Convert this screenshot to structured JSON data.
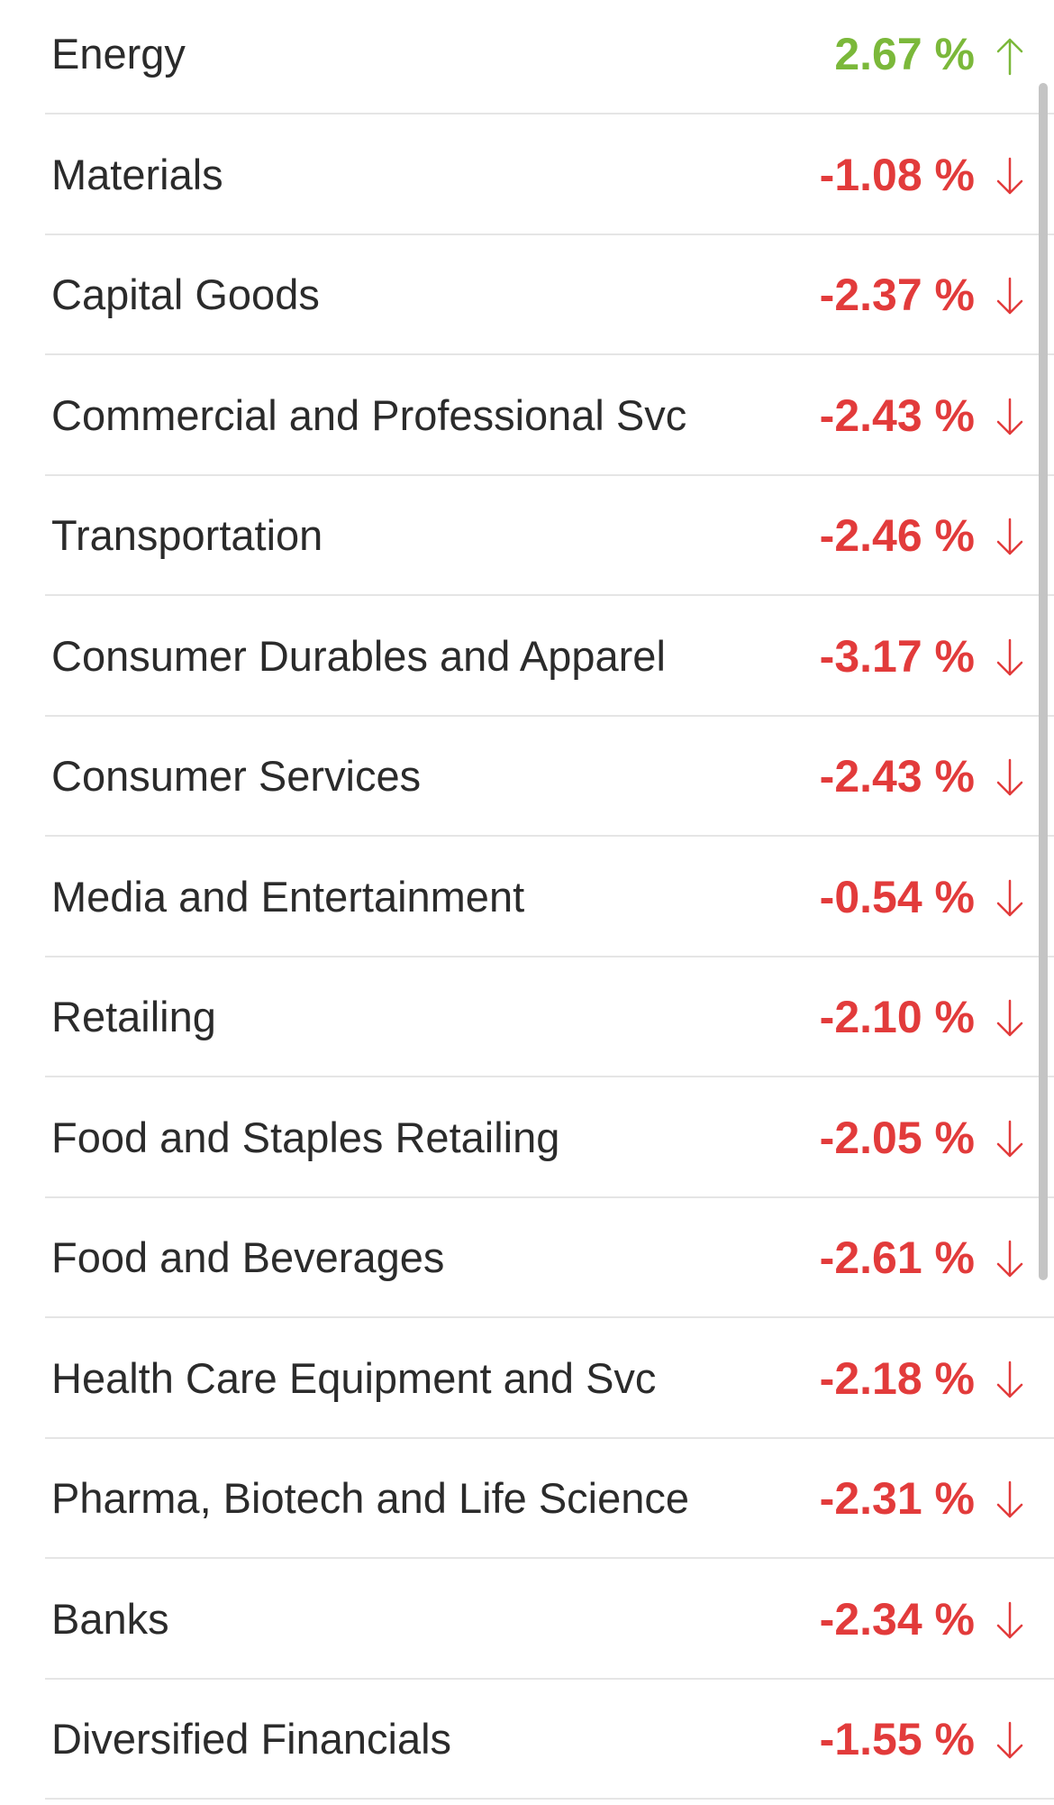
{
  "colors": {
    "up": "#7bb83a",
    "down": "#e23b3b"
  },
  "sectors": [
    {
      "name": "Energy",
      "change": "2.67 %",
      "direction": "up",
      "icon": "arrow-up-icon"
    },
    {
      "name": "Materials",
      "change": "-1.08 %",
      "direction": "down",
      "icon": "arrow-down-icon"
    },
    {
      "name": "Capital Goods",
      "change": "-2.37 %",
      "direction": "down",
      "icon": "arrow-down-icon"
    },
    {
      "name": "Commercial and Professional Svc",
      "change": "-2.43 %",
      "direction": "down",
      "icon": "arrow-down-icon"
    },
    {
      "name": "Transportation",
      "change": "-2.46 %",
      "direction": "down",
      "icon": "arrow-down-icon"
    },
    {
      "name": "Consumer Durables and Apparel",
      "change": "-3.17 %",
      "direction": "down",
      "icon": "arrow-down-icon"
    },
    {
      "name": "Consumer Services",
      "change": "-2.43 %",
      "direction": "down",
      "icon": "arrow-down-icon"
    },
    {
      "name": "Media and Entertainment",
      "change": "-0.54 %",
      "direction": "down",
      "icon": "arrow-down-icon"
    },
    {
      "name": "Retailing",
      "change": "-2.10 %",
      "direction": "down",
      "icon": "arrow-down-icon"
    },
    {
      "name": "Food and Staples Retailing",
      "change": "-2.05 %",
      "direction": "down",
      "icon": "arrow-down-icon"
    },
    {
      "name": "Food and Beverages",
      "change": "-2.61 %",
      "direction": "down",
      "icon": "arrow-down-icon"
    },
    {
      "name": "Health Care Equipment and Svc",
      "change": "-2.18 %",
      "direction": "down",
      "icon": "arrow-down-icon"
    },
    {
      "name": "Pharma, Biotech and Life Science",
      "change": "-2.31 %",
      "direction": "down",
      "icon": "arrow-down-icon"
    },
    {
      "name": "Banks",
      "change": "-2.34 %",
      "direction": "down",
      "icon": "arrow-down-icon"
    },
    {
      "name": "Diversified Financials",
      "change": "-1.55 %",
      "direction": "down",
      "icon": "arrow-down-icon"
    }
  ]
}
